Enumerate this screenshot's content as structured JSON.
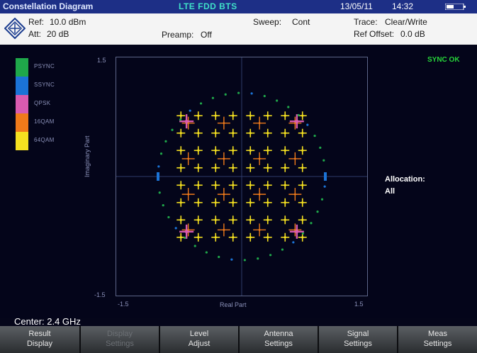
{
  "topbar": {
    "mode": "Constellation Diagram",
    "standard": "LTE FDD BTS",
    "date": "13/05/11",
    "time": "14:32"
  },
  "infobar": {
    "ref_label": "Ref:",
    "ref_value": "10.0 dBm",
    "att_label": "Att:",
    "att_value": "20 dB",
    "preamp_label": "Preamp:",
    "preamp_value": "Off",
    "sweep_label": "Sweep:",
    "sweep_value": "Cont",
    "trace_label": "Trace:",
    "trace_value": "Clear/Write",
    "refoffset_label": "Ref Offset:",
    "refoffset_value": "0.0 dB"
  },
  "legend": [
    {
      "label": "PSYNC",
      "color": "#1fa84a"
    },
    {
      "label": "SSYNC",
      "color": "#1b73d6"
    },
    {
      "label": "QPSK",
      "color": "#d95bb0"
    },
    {
      "label": "16QAM",
      "color": "#f07a1a"
    },
    {
      "label": "64QAM",
      "color": "#f5e020"
    }
  ],
  "plot": {
    "y_top": "1.5",
    "y_bottom": "-1.5",
    "x_left": "-1.5",
    "x_right": "1.5",
    "y_axis_label": "Imaginary Part",
    "x_axis_label": "Real Part"
  },
  "status": {
    "sync": "SYNC OK",
    "allocation_label": "Allocation:",
    "allocation_value": "All"
  },
  "center": "Center: 2.4 GHz",
  "softkeys": [
    {
      "line1": "Result",
      "line2": "Display",
      "enabled": true
    },
    {
      "line1": "Display",
      "line2": "Settings",
      "enabled": false
    },
    {
      "line1": "Level",
      "line2": "Adjust",
      "enabled": true
    },
    {
      "line1": "Antenna",
      "line2": "Settings",
      "enabled": true
    },
    {
      "line1": "Signal",
      "line2": "Settings",
      "enabled": true
    },
    {
      "line1": "Meas",
      "line2": "Settings",
      "enabled": true
    }
  ]
}
